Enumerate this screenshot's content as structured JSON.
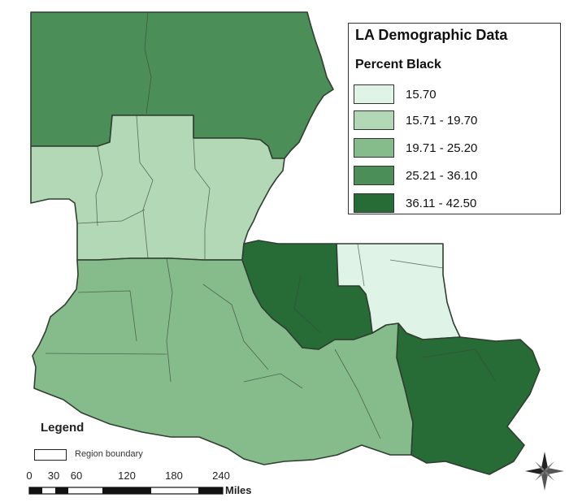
{
  "legend": {
    "title": "LA Demographic Data",
    "subtitle": "Percent Black",
    "classes": [
      {
        "label": "15.70",
        "color": "#dff3e6"
      },
      {
        "label": "15.71 - 19.70",
        "color": "#b2d8b6"
      },
      {
        "label": "19.71 - 25.20",
        "color": "#86bb8b"
      },
      {
        "label": "25.21 - 36.10",
        "color": "#4c8e58"
      },
      {
        "label": "36.11 - 42.50",
        "color": "#276b37"
      }
    ]
  },
  "map_legend": {
    "title": "Legend",
    "boundary_label": "Region boundary"
  },
  "scale_bar": {
    "ticks": [
      "0",
      "30",
      "60",
      "120",
      "180",
      "240"
    ],
    "unit": "Miles"
  },
  "north_arrow": {
    "label": "N",
    "icon": "compass-rose-icon"
  }
}
